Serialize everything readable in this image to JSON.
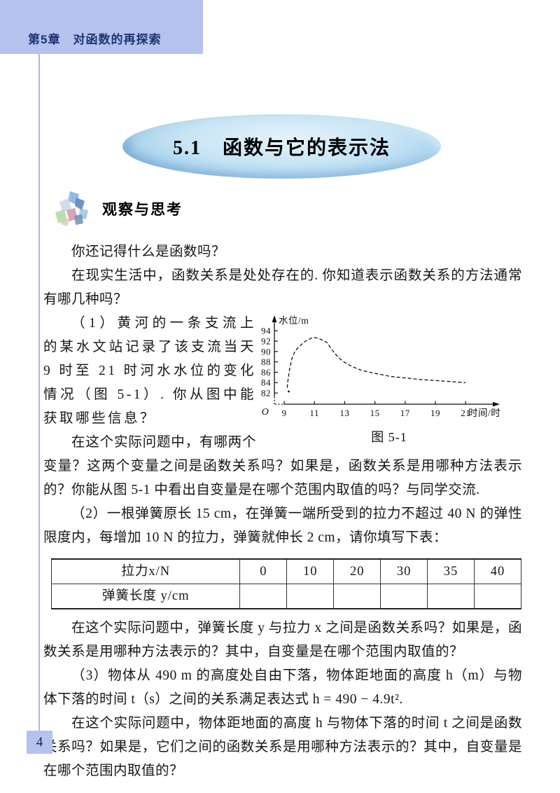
{
  "header": {
    "chapter": "第5章　对函数的再探索"
  },
  "title": "5.1　函数与它的表示法",
  "section": {
    "heading": "观察与思考"
  },
  "paragraphs": {
    "p1": "你还记得什么是函数吗？",
    "p2": "在现实生活中，函数关系是处处存在的. 你知道表示函数关系的方法通常有哪几种吗？",
    "p3": "（1）黄河的一条支流上的某水文站记录了该支流当天 9 时至 21 时河水水位的变化情况（图 5-1）. 你从图中能获取哪些信息？",
    "p4": "在这个实际问题中，有哪两个变量？这两个变量之间是函数关系吗？如果是，函数关系是用哪种方法表示的？你能从图 5-1 中看出自变量是在哪个范围内取值的吗？与同学交流.",
    "p5": "（2）一根弹簧原长 15 cm，在弹簧一端所受到的拉力不超过 40 N 的弹性限度内，每增加 10 N 的拉力，弹簧就伸长 2 cm，请你填写下表：",
    "p6": "在这个实际问题中，弹簧长度 y 与拉力 x 之间是函数关系吗？如果是，函数关系是用哪种方法表示的？其中，自变量是在哪个范围内取值的？",
    "p7": "（3）物体从 490 m 的高度处自由下落，物体距地面的高度 h（m）与物体下落的时间 t（s）之间的关系满足表达式 h = 490 − 4.9t².",
    "p8": "在这个实际问题中，物体距地面的高度 h 与物体下落的时间 t 之间是函数关系吗？如果是，它们之间的函数关系是用哪种方法表示的？其中，自变量是在哪个范围内取值的？"
  },
  "figure": {
    "caption": "图 5-1"
  },
  "chart_data": {
    "type": "line",
    "title": "",
    "xlabel": "时间/时",
    "ylabel": "水位/m",
    "origin_label": "O",
    "x_ticks": [
      9,
      11,
      13,
      15,
      17,
      19,
      21
    ],
    "y_ticks": [
      82,
      84,
      86,
      88,
      90,
      92,
      94
    ],
    "xlim": [
      8.3,
      22.5
    ],
    "ylim": [
      80.5,
      95.5
    ],
    "grid": false,
    "line_style": "dashed",
    "start_dot": {
      "x": 9.3,
      "y": 82.3
    },
    "series": [
      {
        "name": "水位",
        "x": [
          9.2,
          9.25,
          9.35,
          9.5,
          9.7,
          10.0,
          10.4,
          10.8,
          11.0,
          11.3,
          11.6,
          11.8,
          12.0,
          12.3,
          12.6,
          13.0,
          13.5,
          14.0,
          14.5,
          15.0,
          16.0,
          17.0,
          18.0,
          19.0,
          20.0,
          21.0
        ],
        "y": [
          83.0,
          84.5,
          86.5,
          88.5,
          90.0,
          91.0,
          92.0,
          92.6,
          92.7,
          92.5,
          92.1,
          91.8,
          91.0,
          89.8,
          88.8,
          87.9,
          87.1,
          86.5,
          86.1,
          85.8,
          85.2,
          84.9,
          84.6,
          84.4,
          84.2,
          84.0
        ]
      }
    ]
  },
  "table": {
    "rows": [
      {
        "label": "拉力x/N",
        "cells": [
          "0",
          "10",
          "20",
          "30",
          "35",
          "40"
        ]
      },
      {
        "label": "弹簧长度 y/cm",
        "cells": [
          "",
          "",
          "",
          "",
          "",
          ""
        ]
      }
    ]
  },
  "footer": {
    "page_number": "4"
  },
  "colors": {
    "header_bar": "#b5c2ee",
    "header_text": "#1c3472",
    "margin_rule": "#aab7ea",
    "page_badge": "#b5c2ee",
    "ellipse_fill": "#b9d9ef",
    "ellipse_edge": "#74add9",
    "body_text": "#161616"
  }
}
